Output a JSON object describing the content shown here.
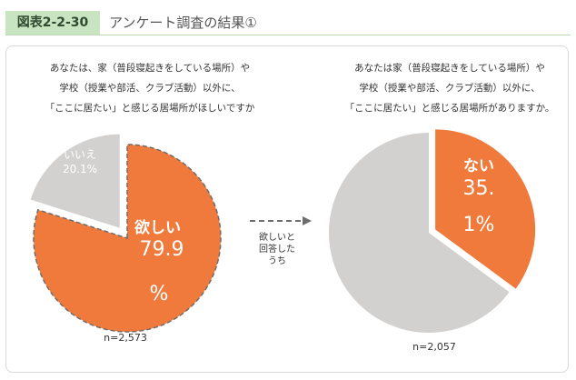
{
  "figure": {
    "badge": "図表2-2-30",
    "title": "アンケート調査の結果①"
  },
  "questions": {
    "left_lines": [
      "あなたは、家（普段寝起きをしている場所）や",
      "学校（授業や部活、クラブ活動）以外に、",
      "「ここに居たい」と感じる居場所がほしいですか"
    ],
    "right_lines": [
      "あなたは家（普段寝起きをしている場所）や",
      "学校（授業や部活、クラブ活動）以外に、",
      "「ここに居たい」と感じる居場所がありますか。"
    ]
  },
  "arrow_caption_lines": [
    "欲しいと",
    "回答した",
    "うち"
  ],
  "colors": {
    "orange": "#f07a3c",
    "gray": "#d3d1cf",
    "white": "#ffffff",
    "dash": "#6d6d6d"
  },
  "chart_data": [
    {
      "type": "pie",
      "n_label": "n=2,573",
      "slices": [
        {
          "label": "欲しい",
          "value": 79.9,
          "value_text": "79.9",
          "unit": "%",
          "color": "#f07a3c",
          "highlighted": true
        },
        {
          "label": "いいえ",
          "value": 20.1,
          "value_text": "20.1%",
          "color": "#d3d1cf",
          "exploded": true
        }
      ]
    },
    {
      "type": "pie",
      "n_label": "n=2,057",
      "slices": [
        {
          "label": "ない",
          "value": 35.1,
          "value_text": "35.",
          "unit_text": "1%",
          "color": "#f07a3c",
          "exploded": true
        },
        {
          "label": "",
          "value": 64.9,
          "color": "#d3d1cf"
        }
      ]
    }
  ]
}
